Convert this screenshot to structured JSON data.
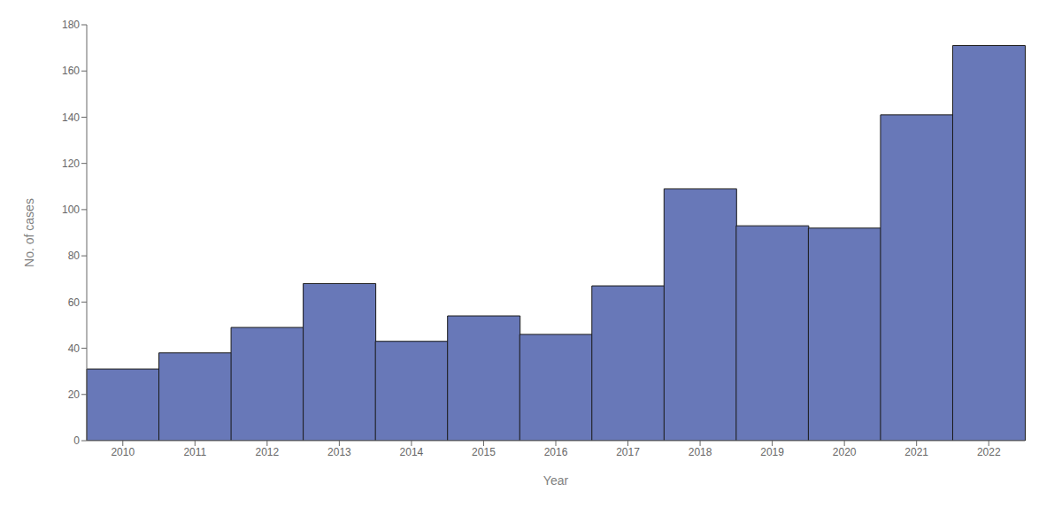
{
  "chart_data": {
    "type": "bar",
    "categories": [
      "2010",
      "2011",
      "2012",
      "2013",
      "2014",
      "2015",
      "2016",
      "2017",
      "2018",
      "2019",
      "2020",
      "2021",
      "2022"
    ],
    "values": [
      31,
      38,
      49,
      68,
      43,
      54,
      46,
      67,
      109,
      93,
      92,
      141,
      171
    ],
    "color": "#6878b8",
    "xlabel": "Year",
    "ylabel": "No. of cases",
    "ylim": [
      0,
      180
    ],
    "yticks": [
      0,
      20,
      40,
      60,
      80,
      100,
      120,
      140,
      160,
      180
    ],
    "grid": false
  }
}
